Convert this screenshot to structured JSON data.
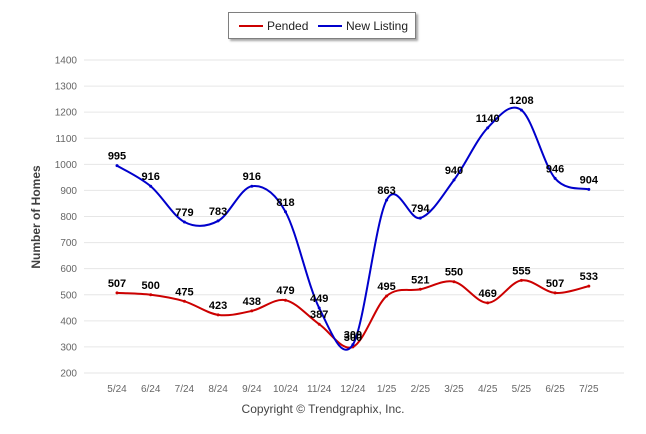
{
  "legend": {
    "pended_label": "Pended",
    "new_listing_label": "New Listing"
  },
  "copyright": "Copyright © Trendgraphix, Inc.",
  "colors": {
    "pended": "#cc0000",
    "new_listing": "#0000cc",
    "grid": "#e6e6e6",
    "axis_text": "#666666",
    "label_text": "#000000"
  },
  "chart_data": {
    "type": "line",
    "title": "",
    "xlabel": "",
    "ylabel": "Number of Homes",
    "ylim": [
      200,
      1400
    ],
    "yticks": [
      200,
      300,
      400,
      500,
      600,
      700,
      800,
      900,
      1000,
      1100,
      1200,
      1300,
      1400
    ],
    "grid": true,
    "legend_position": "top-center",
    "categories": [
      "5/24",
      "6/24",
      "7/24",
      "8/24",
      "9/24",
      "10/24",
      "11/24",
      "12/24",
      "1/25",
      "2/25",
      "3/25",
      "4/25",
      "5/25",
      "6/25",
      "7/25"
    ],
    "series": [
      {
        "name": "Pended",
        "color": "#cc0000",
        "values": [
          507,
          500,
          475,
          423,
          438,
          479,
          387,
          300,
          495,
          521,
          550,
          469,
          555,
          507,
          533
        ]
      },
      {
        "name": "New Listing",
        "color": "#0000cc",
        "values": [
          995,
          916,
          779,
          783,
          916,
          818,
          449,
          309,
          863,
          794,
          940,
          1140,
          1208,
          946,
          904
        ]
      }
    ]
  }
}
